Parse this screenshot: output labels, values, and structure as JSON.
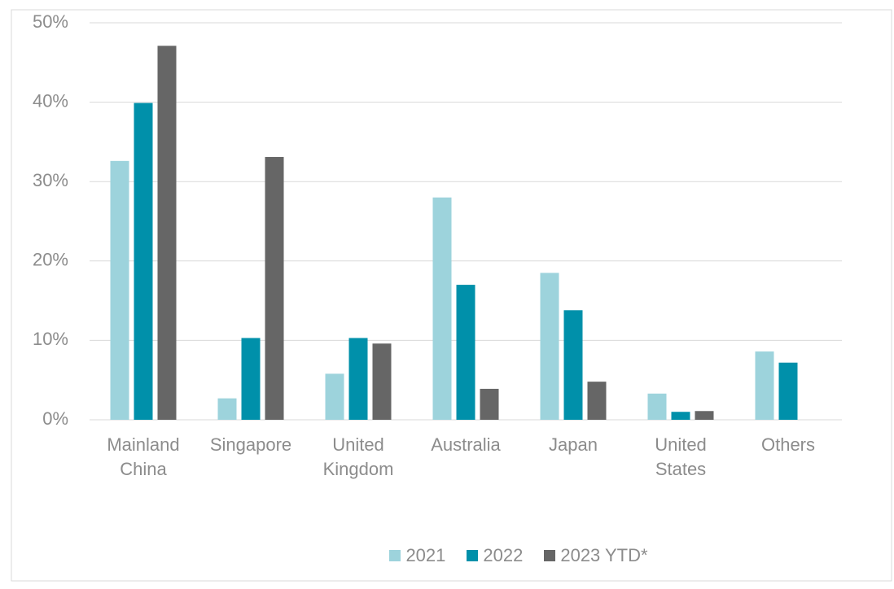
{
  "chart_data": {
    "type": "bar",
    "categories": [
      "Mainland China",
      "Singapore",
      "United Kingdom",
      "Australia",
      "Japan",
      "United States",
      "Others"
    ],
    "series": [
      {
        "name": "2021",
        "color": "#9dd3dc",
        "values": [
          32.6,
          2.7,
          5.8,
          28.0,
          18.5,
          3.3,
          8.6
        ]
      },
      {
        "name": "2022",
        "color": "#0090aa",
        "values": [
          39.9,
          10.3,
          10.3,
          17.0,
          13.8,
          1.0,
          7.2
        ]
      },
      {
        "name": "2023 YTD*",
        "color": "#666666",
        "values": [
          47.1,
          33.1,
          9.6,
          3.9,
          4.8,
          1.1,
          null
        ]
      }
    ],
    "ylim": [
      0,
      50
    ],
    "yticks": [
      {
        "value": 0,
        "label": "0%"
      },
      {
        "value": 10,
        "label": "10%"
      },
      {
        "value": 20,
        "label": "20%"
      },
      {
        "value": 30,
        "label": "30%"
      },
      {
        "value": 40,
        "label": "40%"
      },
      {
        "value": 50,
        "label": "50%"
      }
    ],
    "grid": true,
    "legend": "bottom"
  }
}
